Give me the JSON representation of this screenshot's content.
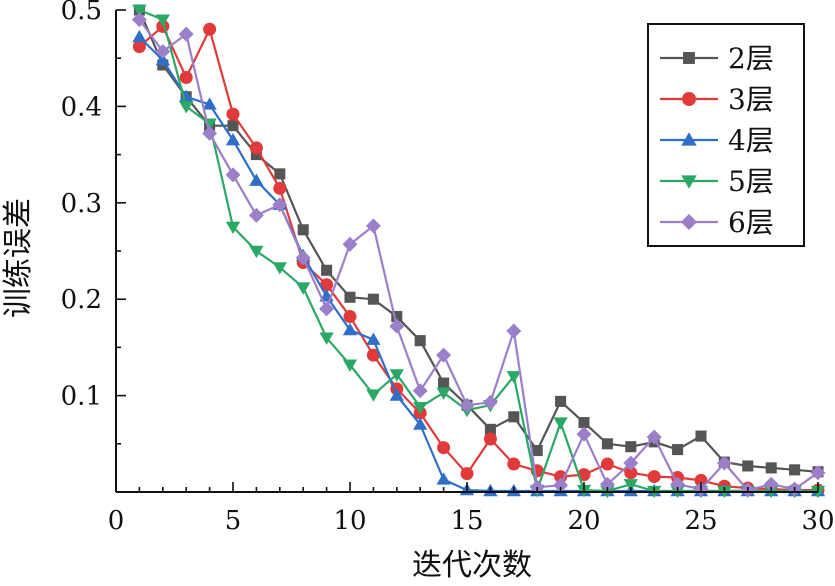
{
  "chart_data": {
    "type": "line",
    "title": "",
    "xlabel": "迭代次数",
    "ylabel": "训练误差",
    "xlim": [
      0,
      30
    ],
    "ylim": [
      0,
      0.5
    ],
    "xticks": [
      0,
      5,
      10,
      15,
      20,
      25,
      30
    ],
    "xtick_labels": [
      "0",
      "5",
      "10",
      "15",
      "20",
      "25",
      "30"
    ],
    "yticks": [
      0.1,
      0.2,
      0.3,
      0.4,
      0.5
    ],
    "ytick_labels": [
      "0.1",
      "0.2",
      "0.3",
      "0.4",
      "0.5"
    ],
    "grid": false,
    "legend_position": "top-right",
    "x": [
      1,
      2,
      3,
      4,
      5,
      6,
      7,
      8,
      9,
      10,
      11,
      12,
      13,
      14,
      15,
      16,
      17,
      18,
      19,
      20,
      21,
      22,
      23,
      24,
      25,
      26,
      27,
      28,
      29,
      30
    ],
    "series": [
      {
        "name": "2层",
        "color": "#555555",
        "marker": "square",
        "values": [
          0.5,
          0.443,
          0.41,
          0.38,
          0.38,
          0.35,
          0.33,
          0.272,
          0.23,
          0.202,
          0.2,
          0.182,
          0.157,
          0.113,
          0.09,
          0.065,
          0.078,
          0.043,
          0.094,
          0.072,
          0.05,
          0.047,
          0.052,
          0.044,
          0.058,
          0.031,
          0.027,
          0.025,
          0.023,
          0.021
        ]
      },
      {
        "name": "3层",
        "color": "#e03a3a",
        "marker": "circle",
        "values": [
          0.462,
          0.483,
          0.43,
          0.48,
          0.392,
          0.357,
          0.315,
          0.238,
          0.215,
          0.182,
          0.142,
          0.107,
          0.082,
          0.046,
          0.019,
          0.055,
          0.029,
          0.022,
          0.016,
          0.018,
          0.029,
          0.02,
          0.016,
          0.015,
          0.012,
          0.006,
          0.004,
          0.003,
          0.002,
          0.002
        ]
      },
      {
        "name": "4层",
        "color": "#2f6fc8",
        "marker": "triangle-up",
        "values": [
          0.472,
          0.448,
          0.41,
          0.402,
          0.365,
          0.323,
          0.298,
          0.245,
          0.203,
          0.168,
          0.158,
          0.1,
          0.07,
          0.013,
          0.002,
          0.001,
          0.001,
          0.001,
          0.001,
          0.001,
          0.001,
          0.001,
          0.001,
          0.001,
          0.001,
          0.001,
          0.001,
          0.001,
          0.001,
          0.001
        ]
      },
      {
        "name": "5层",
        "color": "#2aa866",
        "marker": "triangle-down",
        "values": [
          0.5,
          0.49,
          0.4,
          0.382,
          0.275,
          0.25,
          0.233,
          0.212,
          0.16,
          0.132,
          0.101,
          0.122,
          0.088,
          0.103,
          0.085,
          0.09,
          0.12,
          0.002,
          0.072,
          0.002,
          0.001,
          0.008,
          0.001,
          0.001,
          0.001,
          0.001,
          0.001,
          0.001,
          0.001,
          0.001
        ]
      },
      {
        "name": "6层",
        "color": "#9b7fc8",
        "marker": "diamond",
        "values": [
          0.49,
          0.457,
          0.475,
          0.372,
          0.329,
          0.287,
          0.298,
          0.243,
          0.19,
          0.257,
          0.276,
          0.172,
          0.105,
          0.142,
          0.09,
          0.093,
          0.167,
          0.005,
          0.007,
          0.06,
          0.008,
          0.03,
          0.057,
          0.008,
          0.003,
          0.03,
          0.002,
          0.008,
          0.003,
          0.02
        ]
      }
    ]
  }
}
